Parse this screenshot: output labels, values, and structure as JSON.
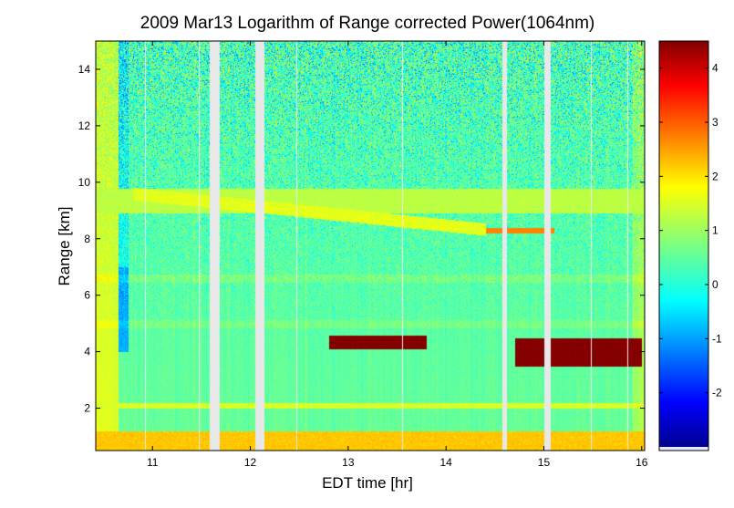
{
  "chart_data": {
    "type": "heatmap",
    "title": "2009 Mar13  Logarithm of Range corrected Power(1064nm)",
    "xlabel": "EDT time [hr]",
    "ylabel": "Range [km]",
    "xlim": [
      10.42,
      16.03
    ],
    "ylim": [
      0.5,
      15.0
    ],
    "x_ticks": [
      11,
      12,
      13,
      14,
      15,
      16
    ],
    "y_ticks": [
      2,
      4,
      6,
      8,
      10,
      12,
      14
    ],
    "colorbar": {
      "range": [
        -3.0,
        4.5
      ],
      "ticks": [
        -2,
        -1,
        0,
        1,
        2,
        3,
        4
      ],
      "colormap": "jet"
    },
    "data_gaps_hr": [
      [
        11.58,
        11.68
      ],
      [
        12.05,
        12.14
      ],
      [
        14.57,
        14.62
      ],
      [
        15.0,
        15.07
      ]
    ],
    "thin_gaps_hr": [
      10.92,
      11.47,
      12.47,
      13.55,
      15.48,
      15.85
    ],
    "layers": [
      {
        "name": "surface layer",
        "range_km": [
          0.5,
          1.2
        ],
        "value": 2.4
      },
      {
        "name": "low layer",
        "range_km": [
          2.0,
          2.2
        ],
        "value": 1.7
      },
      {
        "name": "cloud",
        "time_hr": [
          14.7,
          16.0
        ],
        "range_km": [
          3.5,
          4.5
        ],
        "value": 4.5
      },
      {
        "name": "cloud",
        "time_hr": [
          12.8,
          13.8
        ],
        "range_km": [
          4.1,
          4.6
        ],
        "value": 4.5
      },
      {
        "name": "upper aerosol layer",
        "range_km": [
          8.9,
          9.8
        ],
        "value": 1.5
      }
    ]
  }
}
